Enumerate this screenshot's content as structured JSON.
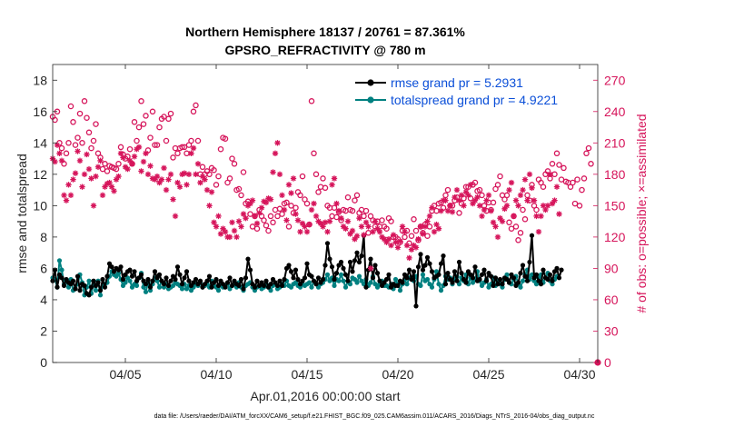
{
  "chart_data": {
    "type": "line",
    "title_line1": "Northern Hemisphere 18137 / 20761 = 87.361%",
    "title_line2": "GPSRO_REFRACTIVITY @ 780 m",
    "xlabel": "Apr.01,2016 00:00:00 start",
    "ylabel_left": "rmse and totalspread",
    "ylabel_right": "# of obs: o=possible; ×=assimilated",
    "footer": "data file: /Users/raeder/DAI/ATM_forcXX/CAM6_setup/f.e21.FHIST_BGC.f09_025.CAM6assim.011/ACARS_2016/Diags_NTrS_2016-04/obs_diag_output.nc",
    "x_range": [
      1,
      31
    ],
    "x_ticks": [
      5,
      10,
      15,
      20,
      25,
      30
    ],
    "x_tick_labels": [
      "04/05",
      "04/10",
      "04/15",
      "04/20",
      "04/25",
      "04/30"
    ],
    "y_left_range": [
      0,
      19
    ],
    "y_left_ticks": [
      0,
      2,
      4,
      6,
      8,
      10,
      12,
      14,
      16,
      18
    ],
    "y_left_tick_labels": [
      "0",
      "2",
      "4",
      "6",
      "8",
      "10",
      "12",
      "14",
      "16",
      "18"
    ],
    "y_right_range": [
      0,
      285
    ],
    "y_right_ticks": [
      0,
      30,
      60,
      90,
      120,
      150,
      180,
      210,
      240,
      270
    ],
    "y_right_tick_labels": [
      "0",
      "30",
      "60",
      "90",
      "120",
      "150",
      "180",
      "210",
      "240",
      "270"
    ],
    "colors": {
      "rmse": "#000000",
      "spread": "#008080",
      "obs": "#d6155b",
      "legend_text": "#0b4fd8"
    },
    "legend": [
      "rmse grand pr = 5.2931",
      "totalspread grand pr = 4.9221"
    ],
    "series": [
      {
        "name": "rmse",
        "x_start": 1,
        "x_step": 0.125,
        "values": [
          5.2,
          5.9,
          4.8,
          5.6,
          5.4,
          4.9,
          5.3,
          5.1,
          5.0,
          5.2,
          4.7,
          5.5,
          4.6,
          5.0,
          4.9,
          4.4,
          4.3,
          4.8,
          5.2,
          4.9,
          5.1,
          4.6,
          5.3,
          4.8,
          5.5,
          6.3,
          6.1,
          5.8,
          6.0,
          5.9,
          6.1,
          5.3,
          5.6,
          5.8,
          5.9,
          5.5,
          5.8,
          5.2,
          5.4,
          5.6,
          5.2,
          5.0,
          5.3,
          4.8,
          5.2,
          5.8,
          5.4,
          5.6,
          5.2,
          5.0,
          5.4,
          4.9,
          5.2,
          5.5,
          5.3,
          6.1,
          5.6,
          5.0,
          5.4,
          5.8,
          5.2,
          4.9,
          5.1,
          5.3,
          5.0,
          5.2,
          4.8,
          5.0,
          5.2,
          5.5,
          4.8,
          5.1,
          5.3,
          4.9,
          5.2,
          5.0,
          4.8,
          5.1,
          5.4,
          4.9,
          5.2,
          5.0,
          4.9,
          5.3,
          4.7,
          5.4,
          6.6,
          5.9,
          5.0,
          4.8,
          5.2,
          4.9,
          5.1,
          4.9,
          5.2,
          4.8,
          5.0,
          5.3,
          5.1,
          4.9,
          5.2,
          4.9,
          5.3,
          6.0,
          6.2,
          5.8,
          5.4,
          5.9,
          5.3,
          5.0,
          5.2,
          5.4,
          6.3,
          5.6,
          5.5,
          5.2,
          5.0,
          5.4,
          5.1,
          5.3,
          6.2,
          7.6,
          6.6,
          6.1,
          5.3,
          5.7,
          6.2,
          6.4,
          6.0,
          5.6,
          5.2,
          6.4,
          5.8,
          6.5,
          7.0,
          6.4,
          6.8,
          8.1,
          4.8,
          5.9,
          6.6,
          5.4,
          6.2,
          5.7,
          5.2,
          4.9,
          5.1,
          5.3,
          5.6,
          4.8,
          5.0,
          4.9,
          4.9,
          5.2,
          5.1,
          5.6,
          5.4,
          5.9,
          5.3,
          5.8,
          3.6,
          6.1,
          6.9,
          5.9,
          6.2,
          6.7,
          6.3,
          5.8,
          5.4,
          5.5,
          5.6,
          6.3,
          6.8,
          5.0,
          5.7,
          5.3,
          5.1,
          5.8,
          5.2,
          6.4,
          5.7,
          5.3,
          5.1,
          5.8,
          5.6,
          5.4,
          6.1,
          5.2,
          5.3,
          5.6,
          5.9,
          5.2,
          5.7,
          5.5,
          4.9,
          5.4,
          5.0,
          5.3,
          5.0,
          5.4,
          5.3,
          5.1,
          5.6,
          5.4,
          4.9,
          5.1,
          5.7,
          6.2,
          5.5,
          5.2,
          6.4,
          8.1,
          5.4,
          5.6,
          5.2,
          5.0,
          5.9,
          5.4,
          5.3,
          5.6,
          5.2,
          5.8,
          6.0,
          5.4,
          5.9
        ]
      },
      {
        "name": "totalspread",
        "x_start": 1,
        "x_step": 0.125,
        "values": [
          5.4,
          5.3,
          4.8,
          6.5,
          5.9,
          5.0,
          5.2,
          4.8,
          5.3,
          4.6,
          4.7,
          5.0,
          5.6,
          5.1,
          4.3,
          4.8,
          5.2,
          4.4,
          5.0,
          4.6,
          5.2,
          4.3,
          4.9,
          5.0,
          5.1,
          5.5,
          5.8,
          5.6,
          5.5,
          5.7,
          5.3,
          4.9,
          5.1,
          5.4,
          5.2,
          4.8,
          5.0,
          4.9,
          5.4,
          5.7,
          4.8,
          4.5,
          5.1,
          4.6,
          5.0,
          5.4,
          5.2,
          4.8,
          5.2,
          4.8,
          5.0,
          4.7,
          4.8,
          4.9,
          5.1,
          5.0,
          4.9,
          4.7,
          5.0,
          4.7,
          4.9,
          4.6,
          4.8,
          5.0,
          4.9,
          5.1,
          4.8,
          4.9,
          5.0,
          4.8,
          5.2,
          4.9,
          4.8,
          4.6,
          5.0,
          4.8,
          4.9,
          5.0,
          4.7,
          4.9,
          5.0,
          4.8,
          5.1,
          4.8,
          4.6,
          4.9,
          5.0,
          5.1,
          4.8,
          4.6,
          4.8,
          4.9,
          4.7,
          4.8,
          5.0,
          4.8,
          4.6,
          4.9,
          5.0,
          4.7,
          4.8,
          5.0,
          4.9,
          5.2,
          4.9,
          4.8,
          5.0,
          5.1,
          4.9,
          4.8,
          5.0,
          4.9,
          5.0,
          5.1,
          4.8,
          5.2,
          5.0,
          4.8,
          5.0,
          5.1,
          5.3,
          5.6,
          5.2,
          5.4,
          4.9,
          5.3,
          5.2,
          5.6,
          5.2,
          4.8,
          5.2,
          5.0,
          5.4,
          5.3,
          5.1,
          5.5,
          5.2,
          5.0,
          5.3,
          4.9,
          5.1,
          5.5,
          5.0,
          4.8,
          5.0,
          5.2,
          4.9,
          4.9,
          4.8,
          5.0,
          4.7,
          5.3,
          5.0,
          4.6,
          5.0,
          5.3,
          5.0,
          5.4,
          5.4,
          5.2,
          5.5,
          5.0,
          4.9,
          5.6,
          5.2,
          5.3,
          5.0,
          4.8,
          5.3,
          5.8,
          5.0,
          4.6,
          4.9,
          5.5,
          5.3,
          5.4,
          5.0,
          5.3,
          5.5,
          5.0,
          5.4,
          5.2,
          5.6,
          5.0,
          5.4,
          5.1,
          5.3,
          5.8,
          5.2,
          4.9,
          5.1,
          5.3,
          4.8,
          5.0,
          5.4,
          4.9,
          5.2,
          5.0,
          4.8,
          5.3,
          5.6,
          5.1,
          5.0,
          5.3,
          5.5,
          5.0,
          4.8,
          5.2,
          5.6,
          5.9,
          5.3,
          5.6,
          5.2,
          5.0,
          5.4,
          5.6,
          5.1,
          5.4,
          5.7,
          5.2,
          5.0,
          5.3,
          5.5
        ]
      },
      {
        "name": "obs_possible",
        "x_start": 1,
        "x_step": 0.125,
        "values": [
          235,
          232,
          240,
          210,
          205,
          190,
          200,
          210,
          245,
          230,
          208,
          215,
          238,
          210,
          250,
          234,
          220,
          205,
          212,
          228,
          200,
          196,
          185,
          190,
          183,
          188,
          187,
          186,
          185,
          190,
          206,
          199,
          195,
          197,
          204,
          190,
          230,
          212,
          225,
          250,
          228,
          236,
          203,
          215,
          240,
          208,
          208,
          225,
          233,
          235,
          212,
          233,
          238,
          196,
          205,
          200,
          205,
          206,
          206,
          200,
          208,
          212,
          240,
          246,
          212,
          180,
          187,
          180,
          183,
          180,
          186,
          184,
          170,
          178,
          204,
          215,
          214,
          172,
          176,
          195,
          190,
          165,
          166,
          160,
          182,
          152,
          154,
          142,
          130,
          140,
          128,
          146,
          140,
          136,
          131,
          126,
          140,
          134,
          146,
          140,
          147,
          142,
          152,
          153,
          130,
          150,
          143,
          148,
          163,
          160,
          178,
          156,
          152,
          132,
          250,
          200,
          180,
          163,
          168,
          176,
          167,
          150,
          148,
          140,
          148,
          139,
          144,
          136,
          146,
          145,
          158,
          146,
          145,
          155,
          160,
          143,
          146,
          140,
          145,
          124,
          140,
          136,
          130,
          135,
          130,
          136,
          130,
          128,
          138,
          135,
          120,
          120,
          118,
          115,
          126,
          120,
          126,
          114,
          121,
          137,
          126,
          117,
          130,
          124,
          132,
          121,
          130,
          145,
          150,
          145,
          152,
          153,
          148,
          160,
          165,
          150,
          150,
          155,
          158,
          143,
          152,
          157,
          168,
          168,
          157,
          170,
          172,
          164,
          165,
          160,
          150,
          145,
          153,
          146,
          153,
          166,
          170,
          178,
          160,
          156,
          160,
          134,
          128,
          140,
          130,
          117,
          124,
          146,
          137,
          160,
          155,
          170,
          150,
          146,
          175,
          172,
          168,
          180,
          183,
          176,
          190,
          180,
          200,
          189,
          175,
          186,
          173,
          172,
          168,
          172,
          152,
          175,
          150,
          165,
          176,
          200,
          205,
          190
        ]
      },
      {
        "name": "obs_assimilated",
        "x_start": 1,
        "x_step": 0.125,
        "values": [
          195,
          192,
          208,
          200,
          193,
          160,
          155,
          170,
          160,
          175,
          181,
          202,
          193,
          168,
          180,
          199,
          185,
          176,
          150,
          178,
          187,
          193,
          160,
          168,
          171,
          172,
          168,
          164,
          175,
          178,
          200,
          196,
          187,
          185,
          193,
          190,
          197,
          204,
          206,
          183,
          192,
          200,
          180,
          188,
          176,
          175,
          178,
          172,
          175,
          186,
          165,
          175,
          180,
          156,
          140,
          172,
          168,
          180,
          181,
          170,
          180,
          200,
          205,
          180,
          190,
          172,
          178,
          175,
          165,
          150,
          163,
          134,
          130,
          140,
          123,
          128,
          125,
          120,
          120,
          134,
          126,
          120,
          135,
          130,
          142,
          138,
          150,
          152,
          155,
          140,
          133,
          143,
          148,
          154,
          153,
          157,
          156,
          182,
          200,
          210,
          180,
          160,
          146,
          136,
          170,
          162,
          176,
          142,
          136,
          125,
          133,
          130,
          125,
          132,
          146,
          152,
          140,
          135,
          133,
          130,
          134,
          125,
          135,
          170,
          176,
          152,
          145,
          138,
          130,
          128,
          135,
          123,
          126,
          118,
          121,
          138,
          130,
          122,
          134,
          130,
          90,
          125,
          135,
          128,
          125,
          120,
          118,
          115,
          118,
          112,
          122,
          115,
          110,
          116,
          130,
          125,
          112,
          100,
          108,
          112,
          110,
          118,
          130,
          123,
          130,
          135,
          140,
          148,
          125,
          132,
          128,
          145,
          155,
          155,
          145,
          150,
          144,
          158,
          165,
          155,
          160,
          150,
          163,
          160,
          170,
          152,
          155,
          158,
          150,
          140,
          146,
          155,
          160,
          145,
          134,
          130,
          120,
          138,
          135,
          147,
          150,
          165,
          172,
          140,
          155,
          150,
          160,
          165,
          175,
          155,
          180,
          167,
          155,
          140,
          125,
          140,
          150,
          146,
          150,
          180,
          152,
          155,
          168,
          142
        ]
      }
    ]
  }
}
